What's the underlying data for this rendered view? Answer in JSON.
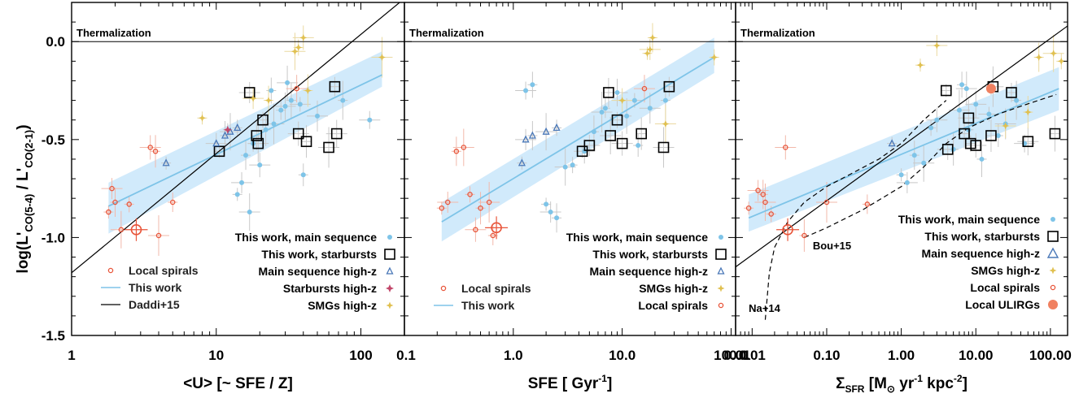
{
  "colors": {
    "main_sequence": "#7ec4e8",
    "starburst_box": "#000000",
    "main_seq_highz": "#4a78b8",
    "starburst_highz": "#c2476a",
    "smg_highz": "#e0c050",
    "local_spirals": "#e8553a",
    "local_ulirgs": "#f08060",
    "fit_band": "#cfe9fb",
    "fit_line": "#7ec4e8",
    "error_bar": "#c8c8c8"
  },
  "ylabel_main": "log(L'",
  "ylabel_sub1": "CO(5-4)",
  "ylabel_mid": " / L'",
  "ylabel_sub2": "CO(2-1)",
  "ylabel_end": ")",
  "chart_data": [
    {
      "type": "scatter",
      "panel": "left",
      "xlabel": "<U> [~ SFE / Z]",
      "xscale": "log",
      "xlim": [
        1,
        200
      ],
      "ylim": [
        -1.5,
        0.2
      ],
      "x_ticks": [
        "1",
        "10",
        "100"
      ],
      "y_ticks": [
        "0.0",
        "-0.5",
        "-1.0",
        "-1.5"
      ],
      "thermalization_label": "Thermalization",
      "thermalization_y": 0.0,
      "fit": {
        "x": [
          1.8,
          140
        ],
        "y": [
          -0.84,
          -0.17
        ],
        "band_lower": [
          -0.98,
          -0.23
        ],
        "band_upper": [
          -0.72,
          -0.05
        ]
      },
      "daddi_line": {
        "x": [
          1,
          200
        ],
        "y": [
          -1.18,
          0.22
        ]
      },
      "series": [
        {
          "name": "This work, main sequence",
          "kind": "ms",
          "points": [
            [
              14,
              -0.78
            ],
            [
              15,
              -0.72
            ],
            [
              16,
              -0.58
            ],
            [
              17,
              -0.87
            ],
            [
              18,
              -0.52
            ],
            [
              20,
              -0.63
            ],
            [
              22,
              -0.45
            ],
            [
              25,
              -0.42
            ],
            [
              28,
              -0.35
            ],
            [
              30,
              -0.33
            ],
            [
              33,
              -0.3
            ],
            [
              38,
              -0.32
            ],
            [
              40,
              -0.68
            ],
            [
              50,
              -0.38
            ],
            [
              75,
              -0.3
            ],
            [
              115,
              -0.4
            ],
            [
              24,
              -0.25
            ],
            [
              31,
              -0.21
            ]
          ]
        },
        {
          "name": "This work, starbursts",
          "kind": "sb",
          "points": [
            [
              10.5,
              -0.56
            ],
            [
              17,
              -0.26
            ],
            [
              19,
              -0.48
            ],
            [
              19.5,
              -0.52
            ],
            [
              21,
              -0.4
            ],
            [
              37,
              -0.47
            ],
            [
              42,
              -0.51
            ],
            [
              60,
              -0.54
            ],
            [
              66,
              -0.23
            ],
            [
              68,
              -0.47
            ]
          ]
        },
        {
          "name": "Main sequence high-z",
          "kind": "mshz",
          "points": [
            [
              4.5,
              -0.62
            ],
            [
              10,
              -0.52
            ],
            [
              11.5,
              -0.48
            ],
            [
              12.5,
              -0.46
            ],
            [
              14,
              -0.44
            ]
          ]
        },
        {
          "name": "Starbursts high-z",
          "kind": "sbhz",
          "points": [
            [
              12,
              -0.45
            ]
          ]
        },
        {
          "name": "SMGs high-z",
          "kind": "smg",
          "points": [
            [
              8,
              -0.39
            ],
            [
              18,
              -0.29
            ],
            [
              23,
              -0.3
            ],
            [
              35,
              -0.05
            ],
            [
              37,
              -0.03
            ],
            [
              40,
              0.02
            ],
            [
              43,
              -0.25
            ],
            [
              140,
              -0.08
            ]
          ]
        },
        {
          "name": "Local spirals",
          "kind": "ls",
          "points": [
            [
              1.8,
              -0.87
            ],
            [
              1.9,
              -0.75
            ],
            [
              2.0,
              -0.82
            ],
            [
              2.2,
              -0.96
            ],
            [
              2.5,
              -0.83
            ],
            [
              3.5,
              -0.54
            ],
            [
              3.8,
              -0.56
            ],
            [
              4.0,
              -0.99
            ],
            [
              5.0,
              -0.82
            ],
            [
              36,
              -0.24
            ]
          ]
        },
        {
          "name": "Local spirals, mean",
          "kind": "ls_mean",
          "points": [
            [
              2.8,
              -0.96
            ]
          ]
        }
      ],
      "legend_right": [
        {
          "label": "This work, main sequence",
          "kind": "ms"
        },
        {
          "label": "This work, starbursts",
          "kind": "sb"
        },
        {
          "label": "Main sequence high-z",
          "kind": "mshz"
        },
        {
          "label": "Starbursts high-z",
          "kind": "sbhz"
        },
        {
          "label": "SMGs high-z",
          "kind": "smg"
        }
      ],
      "legend_left": [
        {
          "label": "Local spirals",
          "kind": "ls"
        },
        {
          "label": "This work",
          "kind": "fitline"
        },
        {
          "label": "Daddi+15",
          "kind": "blackline"
        }
      ]
    },
    {
      "type": "scatter",
      "panel": "middle",
      "xlabel": "SFE [ Gyr",
      "xlabel_sup": "-1",
      "xlabel_end": "]",
      "xscale": "log",
      "xlim": [
        0.1,
        110
      ],
      "ylim": [
        -1.5,
        0.2
      ],
      "x_ticks": [
        "0.1",
        "1.0",
        "10.0",
        "100.0"
      ],
      "thermalization_label": "Thermalization",
      "thermalization_y": 0.0,
      "fit": {
        "x": [
          0.22,
          70
        ],
        "y": [
          -0.92,
          -0.08
        ],
        "band_lower": [
          -1.02,
          -0.16
        ],
        "band_upper": [
          -0.82,
          0.02
        ]
      },
      "series": [
        {
          "name": "This work, main sequence",
          "kind": "ms",
          "points": [
            [
              2.0,
              -0.83
            ],
            [
              2.2,
              -0.87
            ],
            [
              2.5,
              -0.9
            ],
            [
              3.0,
              -0.64
            ],
            [
              3.5,
              -0.63
            ],
            [
              4.5,
              -0.56
            ],
            [
              5.5,
              -0.46
            ],
            [
              6.5,
              -0.36
            ],
            [
              7.0,
              -0.34
            ],
            [
              9.0,
              -0.26
            ],
            [
              11,
              -0.38
            ],
            [
              13,
              -0.3
            ],
            [
              14,
              -0.53
            ],
            [
              18,
              -0.34
            ],
            [
              25,
              -0.3
            ],
            [
              1.3,
              -0.25
            ],
            [
              1.5,
              -0.22
            ]
          ]
        },
        {
          "name": "This work, starbursts",
          "kind": "sb",
          "points": [
            [
              4.3,
              -0.56
            ],
            [
              5.0,
              -0.53
            ],
            [
              7.5,
              -0.26
            ],
            [
              7.8,
              -0.48
            ],
            [
              9.0,
              -0.4
            ],
            [
              10,
              -0.52
            ],
            [
              15,
              -0.47
            ],
            [
              24,
              -0.54
            ],
            [
              27,
              -0.23
            ]
          ]
        },
        {
          "name": "Main sequence high-z",
          "kind": "mshz",
          "points": [
            [
              1.2,
              -0.62
            ],
            [
              1.3,
              -0.5
            ],
            [
              1.5,
              -0.48
            ],
            [
              2.0,
              -0.46
            ],
            [
              2.5,
              -0.44
            ]
          ]
        },
        {
          "name": "SMGs high-z",
          "kind": "smg",
          "points": [
            [
              17,
              -0.06
            ],
            [
              18,
              -0.04
            ],
            [
              19,
              0.02
            ],
            [
              25,
              -0.42
            ],
            [
              70,
              -0.08
            ],
            [
              10,
              -0.3
            ]
          ]
        },
        {
          "name": "Local spirals",
          "kind": "ls",
          "points": [
            [
              0.22,
              -0.85
            ],
            [
              0.25,
              -0.82
            ],
            [
              0.3,
              -0.56
            ],
            [
              0.35,
              -0.54
            ],
            [
              0.4,
              -0.78
            ],
            [
              0.45,
              -0.96
            ],
            [
              0.5,
              -0.85
            ],
            [
              0.6,
              -0.82
            ],
            [
              0.65,
              -0.99
            ],
            [
              16,
              -0.24
            ]
          ]
        },
        {
          "name": "Local spirals, mean",
          "kind": "ls_mean",
          "points": [
            [
              0.7,
              -0.95
            ]
          ]
        }
      ],
      "legend_right": [
        {
          "label": "This work, main sequence",
          "kind": "ms"
        },
        {
          "label": "This work, starbursts",
          "kind": "sb"
        },
        {
          "label": "Main sequence high-z",
          "kind": "mshz"
        },
        {
          "label": "SMGs high-z",
          "kind": "smg"
        },
        {
          "label": "Local spirals",
          "kind": "ls"
        }
      ],
      "legend_left": [
        {
          "label": "Local spirals",
          "kind": "ls"
        },
        {
          "label": "This work",
          "kind": "fitline"
        }
      ]
    },
    {
      "type": "scatter",
      "panel": "right",
      "xlabel": "Σ",
      "xlabel_sub": "SFR",
      "xlabel_mid": " [M",
      "xlabel_sub2": "⊙",
      "xlabel_mid2": " yr",
      "xlabel_sup": "-1",
      "xlabel_mid3": " kpc",
      "xlabel_sup2": "-2",
      "xlabel_end": "]",
      "xscale": "log",
      "xlim": [
        0.006,
        170
      ],
      "ylim": [
        -1.5,
        0.2
      ],
      "x_ticks": [
        "0.01",
        "0.10",
        "1.00",
        "10.00",
        "100.00"
      ],
      "thermalization_label": "Thermalization",
      "thermalization_y": 0.0,
      "fit": {
        "x": [
          0.009,
          130
        ],
        "y": [
          -0.9,
          -0.24
        ],
        "band_lower": [
          -0.97,
          -0.35
        ],
        "band_upper": [
          -0.78,
          -0.13
        ]
      },
      "black_line": {
        "x": [
          0.006,
          170
        ],
        "y": [
          -1.15,
          0.08
        ]
      },
      "na14_curve": {
        "x": [
          0.015,
          0.017,
          0.02,
          0.03,
          0.05,
          0.1,
          0.2,
          0.5,
          1.0,
          2.0,
          4.0
        ],
        "y": [
          -1.42,
          -1.18,
          -1.05,
          -0.92,
          -0.82,
          -0.74,
          -0.68,
          -0.6,
          -0.52,
          -0.4,
          -0.3
        ]
      },
      "bou15_curve": {
        "x": [
          0.05,
          0.1,
          0.3,
          1.0,
          2.0,
          4.0,
          8.0,
          20,
          40,
          120
        ],
        "y": [
          -1.0,
          -0.95,
          -0.86,
          -0.74,
          -0.64,
          -0.52,
          -0.44,
          -0.37,
          -0.33,
          -0.27
        ]
      },
      "series": [
        {
          "name": "This work, main sequence",
          "kind": "ms",
          "points": [
            [
              1.0,
              -0.68
            ],
            [
              1.2,
              -0.72
            ],
            [
              1.5,
              -0.58
            ],
            [
              2.0,
              -0.62
            ],
            [
              2.5,
              -0.44
            ],
            [
              3.0,
              -0.4
            ],
            [
              5.0,
              -0.55
            ],
            [
              6.0,
              -0.35
            ],
            [
              8.0,
              -0.45
            ],
            [
              10,
              -0.32
            ],
            [
              12,
              -0.6
            ],
            [
              15,
              -0.37
            ],
            [
              20,
              -0.48
            ],
            [
              25,
              -0.42
            ],
            [
              35,
              -0.3
            ],
            [
              45,
              -0.52
            ],
            [
              6.5,
              -0.22
            ],
            [
              7.5,
              -0.24
            ]
          ]
        },
        {
          "name": "This work, starbursts",
          "kind": "sb",
          "points": [
            [
              4.0,
              -0.25
            ],
            [
              4.2,
              -0.55
            ],
            [
              7.0,
              -0.47
            ],
            [
              8.0,
              -0.39
            ],
            [
              8.5,
              -0.52
            ],
            [
              10,
              -0.53
            ],
            [
              16,
              -0.48
            ],
            [
              17,
              -0.23
            ],
            [
              30,
              -0.26
            ],
            [
              50,
              -0.51
            ],
            [
              115,
              -0.47
            ]
          ]
        },
        {
          "name": "Main sequence high-z",
          "kind": "mshz",
          "points": [
            [
              0.75,
              -0.52
            ]
          ]
        },
        {
          "name": "SMGs high-z",
          "kind": "smg",
          "points": [
            [
              1.8,
              -0.12
            ],
            [
              3.0,
              -0.02
            ],
            [
              70,
              -0.08
            ],
            [
              110,
              -0.06
            ],
            [
              140,
              -0.1
            ],
            [
              25,
              -0.43
            ],
            [
              50,
              -0.36
            ]
          ]
        },
        {
          "name": "Local spirals",
          "kind": "ls",
          "points": [
            [
              0.009,
              -0.85
            ],
            [
              0.012,
              -0.76
            ],
            [
              0.014,
              -0.78
            ],
            [
              0.015,
              -0.82
            ],
            [
              0.018,
              -0.88
            ],
            [
              0.028,
              -0.54
            ],
            [
              0.05,
              -0.99
            ],
            [
              0.1,
              -0.82
            ],
            [
              0.35,
              -0.83
            ]
          ]
        },
        {
          "name": "Local ULIRGs",
          "kind": "ulirg",
          "points": [
            [
              16,
              -0.24
            ]
          ]
        },
        {
          "name": "Local spirals, mean",
          "kind": "ls_mean",
          "points": [
            [
              0.03,
              -0.96
            ]
          ]
        }
      ],
      "annotations": [
        {
          "text": "Bou+15",
          "x": 0.065,
          "y": -1.06
        },
        {
          "text": "Na+14",
          "x": 0.009,
          "y": -1.38
        }
      ],
      "legend_right": [
        {
          "label": "This work, main sequence",
          "kind": "ms"
        },
        {
          "label": "This work, starbursts",
          "kind": "sb"
        },
        {
          "label": "Main sequence high-z",
          "kind": "mshz_big"
        },
        {
          "label": "SMGs high-z",
          "kind": "smg"
        },
        {
          "label": "Local spirals",
          "kind": "ls"
        },
        {
          "label": "Local ULIRGs",
          "kind": "ulirg"
        }
      ]
    }
  ]
}
